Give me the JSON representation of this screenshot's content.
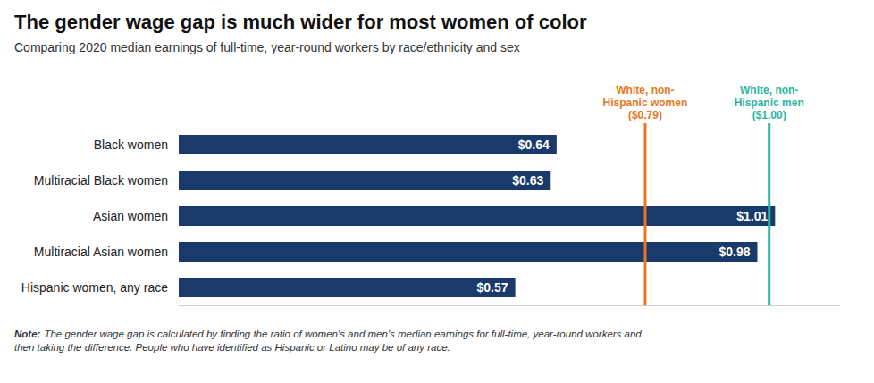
{
  "chart_data": {
    "type": "bar",
    "orientation": "horizontal",
    "title": "The gender wage gap is much wider for most women of color",
    "subtitle": "Comparing 2020 median earnings of full-time, year-round workers by race/ethnicity and sex",
    "categories": [
      "Black women",
      "Multiracial Black women",
      "Asian women",
      "Multiracial Asian women",
      "Hispanic women, any race"
    ],
    "values": [
      0.64,
      0.63,
      1.01,
      0.98,
      0.57
    ],
    "value_labels": [
      "$0.64",
      "$0.63",
      "$1.01",
      "$0.98",
      "$0.57"
    ],
    "data_labels": true,
    "color": "#1a3a6b",
    "xlim": [
      0,
      1.12
    ],
    "tick_labels": "y",
    "grid": false,
    "annotations": [
      {
        "text": "White, non-\nHispanic women\n($0.79)",
        "x": 0.79,
        "color": "#e87722"
      },
      {
        "text": "White, non-\nHispanic men\n($1.00)",
        "x": 1.0,
        "color": "#2ab5a0"
      }
    ],
    "note_label": "Note:",
    "note": "The gender wage gap is calculated by finding the ratio of women's and men's median earnings for full-time, year-round workers and\nthen taking the difference. People who have identified as Hispanic or Latino may be of any race."
  }
}
